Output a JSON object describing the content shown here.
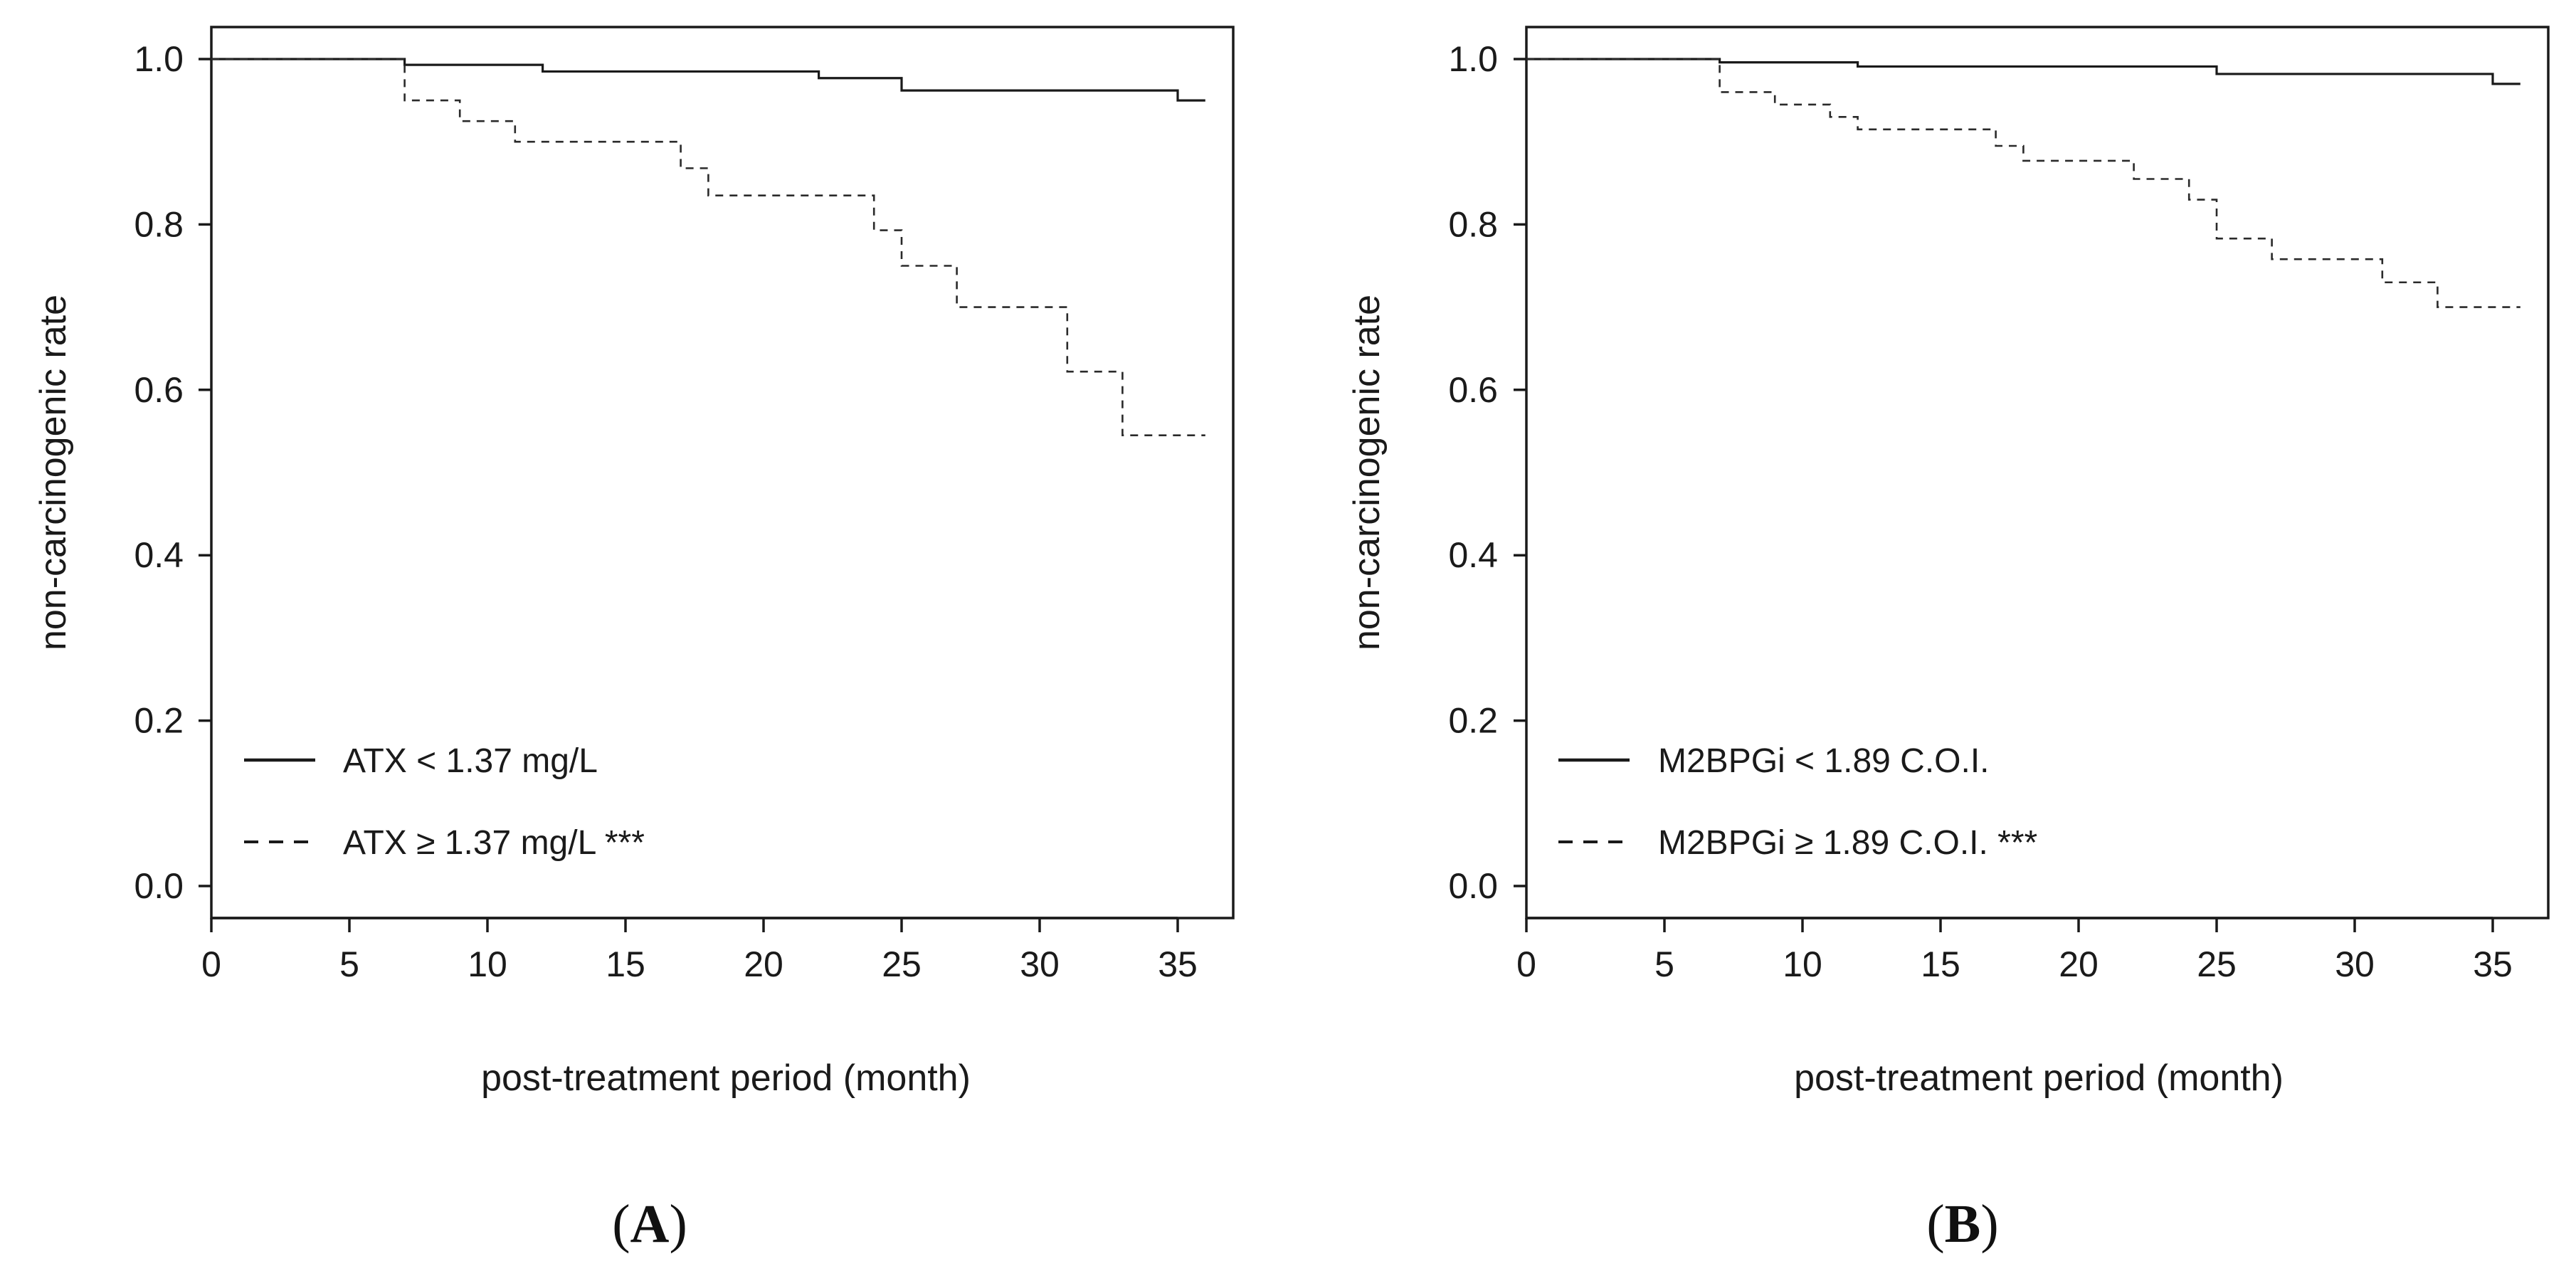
{
  "chart_data": [
    {
      "type": "line",
      "subtype": "kaplan-meier step",
      "panel_label": "A",
      "panel_label_bold": "A",
      "xlabel": "post-treatment period (month)",
      "ylabel": "non-carcinogenic rate",
      "xlim": [
        0,
        36
      ],
      "ylim": [
        0.0,
        1.0
      ],
      "xticks": [
        0,
        5,
        10,
        15,
        20,
        25,
        30,
        35
      ],
      "yticks": [
        0.0,
        0.2,
        0.4,
        0.6,
        0.8,
        1.0
      ],
      "legend_position": "bottom-left",
      "series": [
        {
          "name": "ATX < 1.37 mg/L",
          "style": "solid",
          "points": [
            [
              0,
              1.0
            ],
            [
              7,
              0.993
            ],
            [
              12,
              0.985
            ],
            [
              22,
              0.977
            ],
            [
              25,
              0.962
            ],
            [
              35,
              0.95
            ],
            [
              36,
              0.95
            ]
          ]
        },
        {
          "name": "ATX ≥ 1.37 mg/L ***",
          "style": "dashed",
          "points": [
            [
              0,
              1.0
            ],
            [
              7,
              0.95
            ],
            [
              9,
              0.925
            ],
            [
              11,
              0.9
            ],
            [
              17,
              0.868
            ],
            [
              18,
              0.835
            ],
            [
              24,
              0.793
            ],
            [
              25,
              0.75
            ],
            [
              27,
              0.7
            ],
            [
              31,
              0.622
            ],
            [
              33,
              0.545
            ],
            [
              36,
              0.545
            ]
          ]
        }
      ]
    },
    {
      "type": "line",
      "subtype": "kaplan-meier step",
      "panel_label": "B",
      "panel_label_bold": "B",
      "xlabel": "post-treatment period (month)",
      "ylabel": "non-carcinogenic rate",
      "xlim": [
        0,
        36
      ],
      "ylim": [
        0.0,
        1.0
      ],
      "xticks": [
        0,
        5,
        10,
        15,
        20,
        25,
        30,
        35
      ],
      "yticks": [
        0.0,
        0.2,
        0.4,
        0.6,
        0.8,
        1.0
      ],
      "legend_position": "bottom-left",
      "series": [
        {
          "name": "M2BPGi < 1.89 C.O.I.",
          "style": "solid",
          "points": [
            [
              0,
              1.0
            ],
            [
              7,
              0.996
            ],
            [
              12,
              0.991
            ],
            [
              25,
              0.982
            ],
            [
              35,
              0.97
            ],
            [
              36,
              0.97
            ]
          ]
        },
        {
          "name": "M2BPGi ≥ 1.89 C.O.I. ***",
          "style": "dashed",
          "points": [
            [
              0,
              1.0
            ],
            [
              7,
              0.96
            ],
            [
              9,
              0.945
            ],
            [
              11,
              0.93
            ],
            [
              12,
              0.915
            ],
            [
              17,
              0.895
            ],
            [
              18,
              0.877
            ],
            [
              22,
              0.855
            ],
            [
              24,
              0.83
            ],
            [
              25,
              0.783
            ],
            [
              27,
              0.758
            ],
            [
              31,
              0.73
            ],
            [
              33,
              0.7
            ],
            [
              36,
              0.7
            ]
          ]
        }
      ]
    }
  ]
}
